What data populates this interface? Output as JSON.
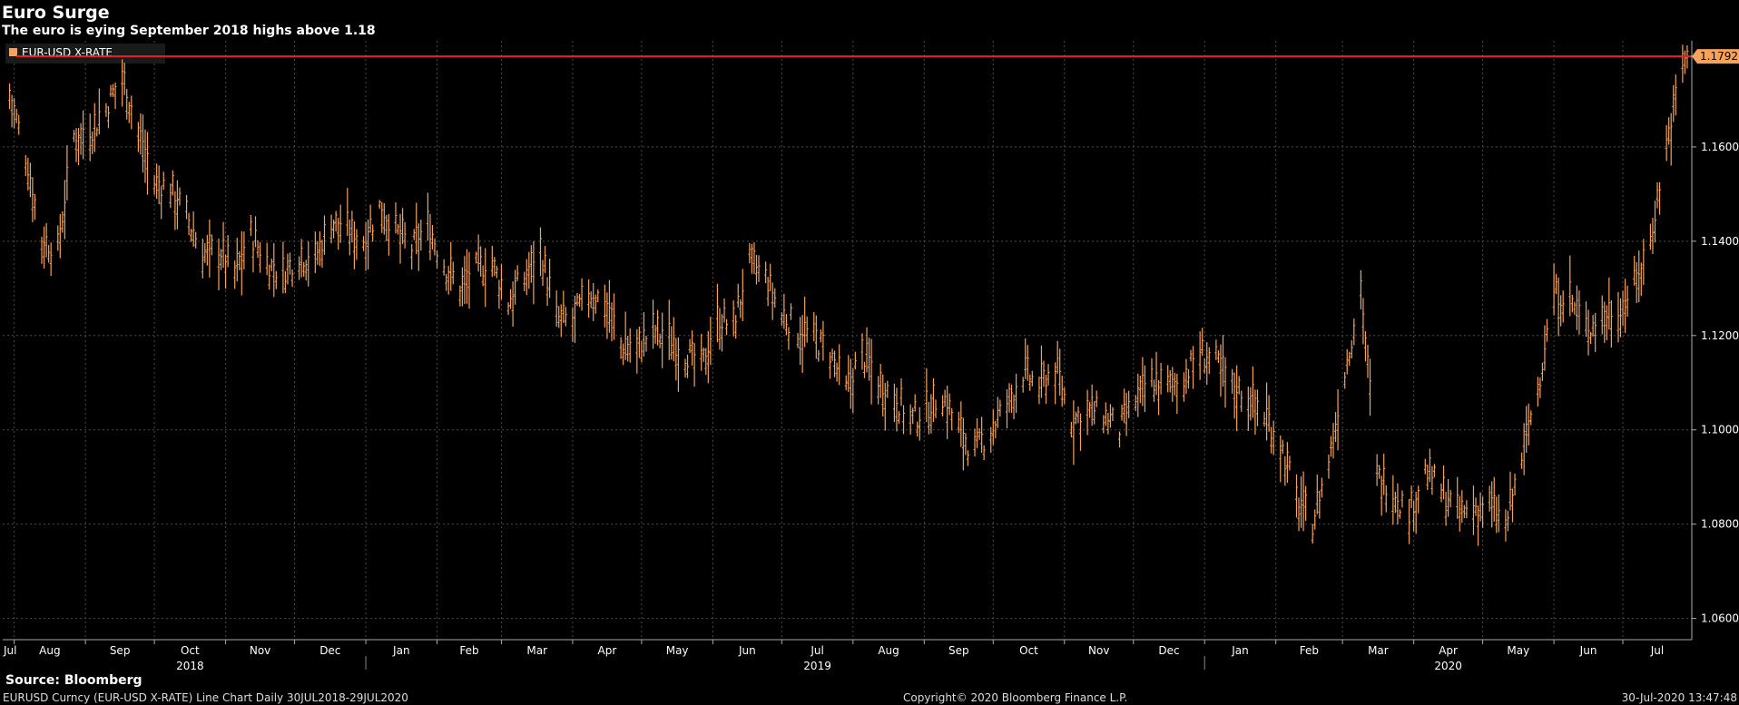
{
  "header": {
    "title": "Euro Surge",
    "subtitle": "The euro is eying September 2018 highs above 1.18"
  },
  "footer": {
    "source": "Source: Bloomberg",
    "description": "EURUSD Curncy (EUR-USD X-RATE) Line Chart  Daily 30JUL2018-29JUL2020",
    "copyright": "Copyright© 2020 Bloomberg Finance L.P.",
    "timestamp": "30-Jul-2020 13:47:48"
  },
  "colors": {
    "background": "#000000",
    "series": "#f5a35a",
    "reference_line": "#e8202a",
    "grid": "#4a4a4a",
    "last_value_badge": "#f5a35a"
  },
  "chart_data": {
    "type": "line",
    "title": "Euro Surge",
    "subtitle": "The euro is eying September 2018 highs above 1.18",
    "legend": [
      {
        "name": "EUR-USD X-RATE",
        "color": "#f5a35a"
      }
    ],
    "legend_position": "top-left",
    "x_tick_labels": [
      "Jul",
      "Aug",
      "Sep",
      "Oct",
      "Nov",
      "Dec",
      "Jan",
      "Feb",
      "Mar",
      "Apr",
      "May",
      "Jun",
      "Jul",
      "Aug",
      "Sep",
      "Oct",
      "Nov",
      "Dec",
      "Jan",
      "Feb",
      "Mar",
      "Apr",
      "May",
      "Jun",
      "Jul"
    ],
    "x_years": [
      {
        "label": "2018",
        "tick_index": 3
      },
      {
        "label": "2019",
        "tick_index": 12
      },
      {
        "label": "2020",
        "tick_index": 21
      }
    ],
    "y_ticks": [
      "1.1600",
      "1.1400",
      "1.1200",
      "1.1000",
      "1.0800",
      "1.0600"
    ],
    "ylim": [
      1.0555,
      1.1825
    ],
    "grid": true,
    "y_axis_side": "right",
    "reference_line": 1.1792,
    "last_value_label": "1.1792",
    "series": [
      {
        "name": "EUR-USD X-RATE",
        "x": [
          "2018-07-30",
          "2018-08-06",
          "2018-08-13",
          "2018-08-20",
          "2018-08-27",
          "2018-09-03",
          "2018-09-10",
          "2018-09-17",
          "2018-09-24",
          "2018-10-01",
          "2018-10-08",
          "2018-10-15",
          "2018-10-22",
          "2018-10-29",
          "2018-11-05",
          "2018-11-12",
          "2018-11-19",
          "2018-11-26",
          "2018-12-03",
          "2018-12-10",
          "2018-12-17",
          "2018-12-24",
          "2018-12-31",
          "2019-01-07",
          "2019-01-14",
          "2019-01-21",
          "2019-01-28",
          "2019-02-04",
          "2019-02-11",
          "2019-02-18",
          "2019-02-25",
          "2019-03-04",
          "2019-03-11",
          "2019-03-18",
          "2019-03-25",
          "2019-04-01",
          "2019-04-08",
          "2019-04-15",
          "2019-04-22",
          "2019-04-29",
          "2019-05-06",
          "2019-05-13",
          "2019-05-20",
          "2019-05-27",
          "2019-06-03",
          "2019-06-10",
          "2019-06-17",
          "2019-06-24",
          "2019-07-01",
          "2019-07-08",
          "2019-07-15",
          "2019-07-22",
          "2019-07-29",
          "2019-08-05",
          "2019-08-12",
          "2019-08-19",
          "2019-08-26",
          "2019-09-02",
          "2019-09-09",
          "2019-09-16",
          "2019-09-23",
          "2019-09-30",
          "2019-10-07",
          "2019-10-14",
          "2019-10-21",
          "2019-10-28",
          "2019-11-04",
          "2019-11-11",
          "2019-11-18",
          "2019-11-25",
          "2019-12-02",
          "2019-12-09",
          "2019-12-16",
          "2019-12-23",
          "2019-12-30",
          "2020-01-06",
          "2020-01-13",
          "2020-01-20",
          "2020-01-27",
          "2020-02-03",
          "2020-02-10",
          "2020-02-17",
          "2020-02-24",
          "2020-03-02",
          "2020-03-09",
          "2020-03-16",
          "2020-03-23",
          "2020-03-30",
          "2020-04-06",
          "2020-04-13",
          "2020-04-20",
          "2020-04-27",
          "2020-05-04",
          "2020-05-11",
          "2020-05-18",
          "2020-05-25",
          "2020-06-01",
          "2020-06-08",
          "2020-06-15",
          "2020-06-22",
          "2020-06-29",
          "2020-07-06",
          "2020-07-13",
          "2020-07-20",
          "2020-07-27"
        ],
        "values": [
          1.171,
          1.158,
          1.14,
          1.138,
          1.162,
          1.163,
          1.168,
          1.175,
          1.163,
          1.152,
          1.151,
          1.145,
          1.137,
          1.138,
          1.133,
          1.141,
          1.135,
          1.133,
          1.137,
          1.136,
          1.144,
          1.142,
          1.14,
          1.147,
          1.142,
          1.138,
          1.143,
          1.135,
          1.13,
          1.134,
          1.135,
          1.127,
          1.132,
          1.138,
          1.123,
          1.123,
          1.129,
          1.127,
          1.118,
          1.117,
          1.121,
          1.119,
          1.116,
          1.113,
          1.123,
          1.122,
          1.135,
          1.132,
          1.124,
          1.121,
          1.119,
          1.116,
          1.108,
          1.116,
          1.11,
          1.107,
          1.102,
          1.104,
          1.107,
          1.1,
          1.095,
          1.1,
          1.105,
          1.112,
          1.109,
          1.113,
          1.102,
          1.104,
          1.103,
          1.1,
          1.106,
          1.11,
          1.109,
          1.111,
          1.116,
          1.114,
          1.109,
          1.107,
          1.103,
          1.097,
          1.085,
          1.08,
          1.093,
          1.112,
          1.13,
          1.09,
          1.087,
          1.082,
          1.091,
          1.087,
          1.082,
          1.083,
          1.084,
          1.079,
          1.094,
          1.109,
          1.128,
          1.128,
          1.121,
          1.124,
          1.125,
          1.13,
          1.14,
          1.16,
          1.178
        ]
      }
    ]
  }
}
